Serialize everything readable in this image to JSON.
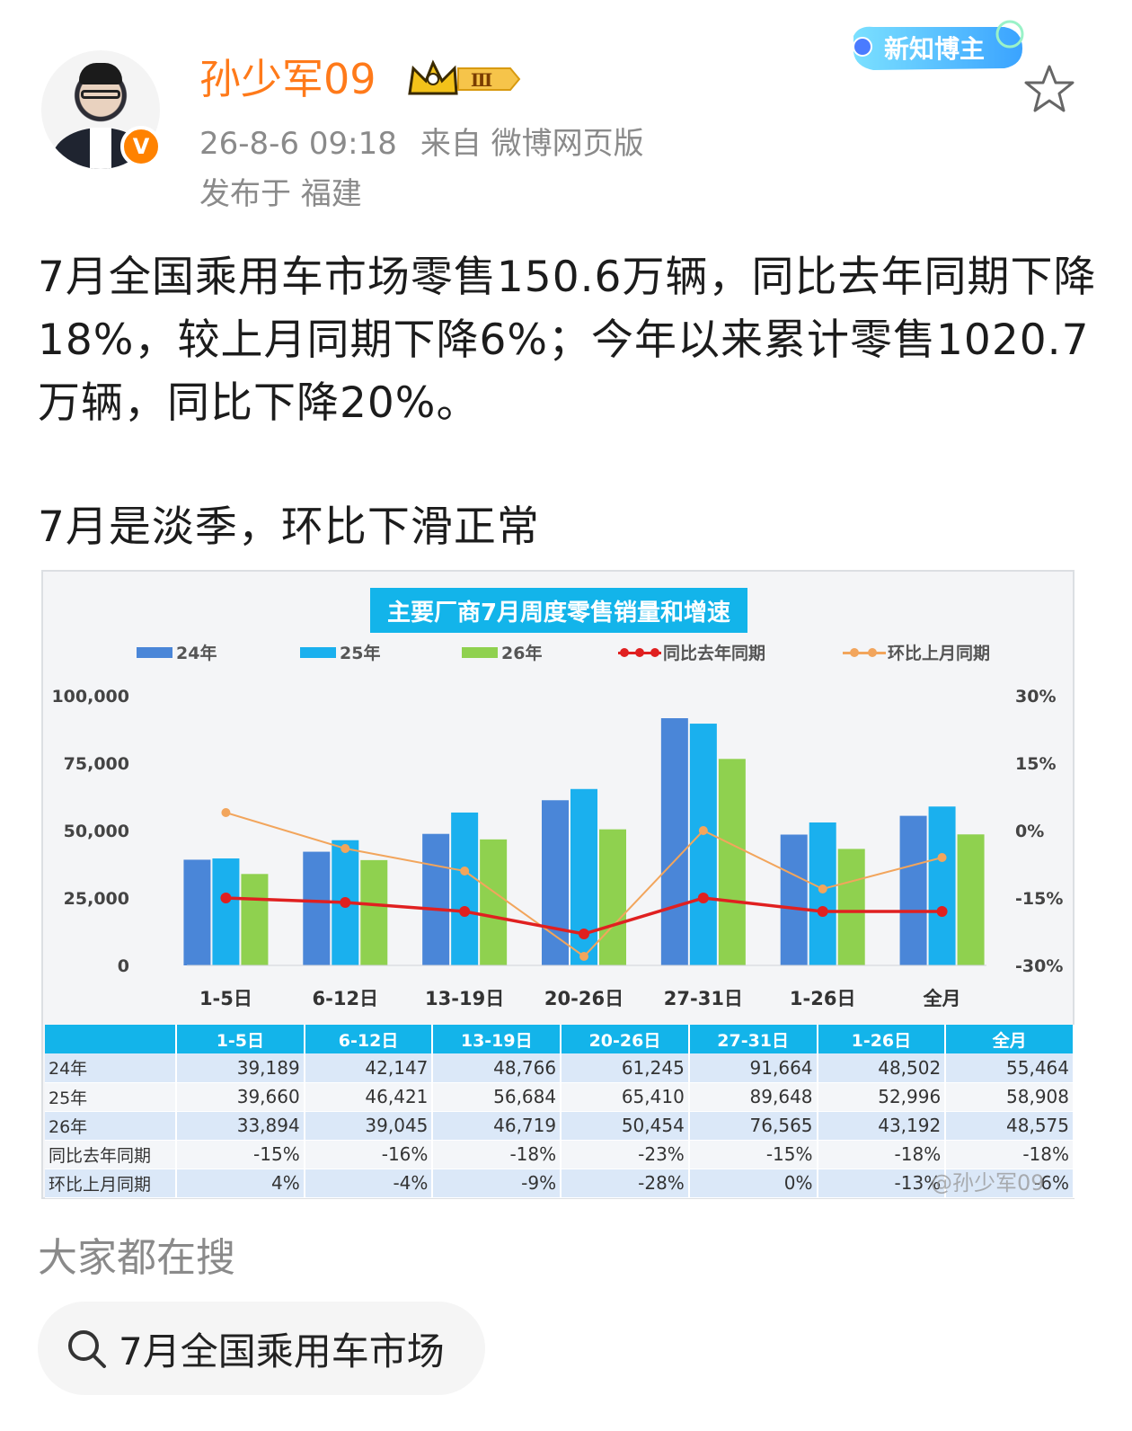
{
  "post": {
    "username": "孙少军09",
    "level_badge": "Ⅲ",
    "time": "26-8-6 09:18",
    "source": "来自 微博网页版",
    "location": "发布于 福建",
    "badge_label": "新知博主",
    "paragraph1": "7月全国乘用车市场零售150.6万辆，同比去年同期下降18%，较上月同期下降6%；今年以来累计零售1020.7万辆，同比下降20%。",
    "paragraph2": "7月是淡季，环比下滑正常"
  },
  "chart_data": {
    "type": "bar",
    "title": "主要厂商7月周度零售销量和增速",
    "categories": [
      "1-5日",
      "6-12日",
      "13-19日",
      "20-26日",
      "27-31日",
      "1-26日",
      "全月"
    ],
    "y_left_ticks": [
      "100,000",
      "75,000",
      "50,000",
      "25,000",
      "0"
    ],
    "y_right_ticks": [
      "30%",
      "15%",
      "0%",
      "-15%",
      "-30%"
    ],
    "ylim": [
      0,
      100000
    ],
    "y2lim": [
      -30,
      30
    ],
    "legend_position": "top",
    "series": [
      {
        "name": "24年",
        "kind": "bar",
        "color": "#4a86d8",
        "values": [
          39189,
          42147,
          48766,
          61245,
          91664,
          48502,
          55464
        ]
      },
      {
        "name": "25年",
        "kind": "bar",
        "color": "#1ab0ee",
        "values": [
          39660,
          46421,
          56684,
          65410,
          89648,
          52996,
          58908
        ]
      },
      {
        "name": "26年",
        "kind": "bar",
        "color": "#8fd14f",
        "values": [
          33894,
          39045,
          46719,
          50454,
          76565,
          43192,
          48575
        ]
      },
      {
        "name": "同比去年同期",
        "kind": "line",
        "axis": "right",
        "color": "#e02020",
        "values": [
          -15,
          -16,
          -18,
          -23,
          -15,
          -18,
          -18
        ]
      },
      {
        "name": "环比上月同期",
        "kind": "line",
        "axis": "right",
        "color": "#f2a55c",
        "values": [
          4,
          -4,
          -9,
          -28,
          0,
          -13,
          -6
        ]
      }
    ],
    "table": {
      "header": [
        "",
        "1-5日",
        "6-12日",
        "13-19日",
        "20-26日",
        "27-31日",
        "1-26日",
        "全月"
      ],
      "rows": [
        [
          "24年",
          "39,189",
          "42,147",
          "48,766",
          "61,245",
          "91,664",
          "48,502",
          "55,464"
        ],
        [
          "25年",
          "39,660",
          "46,421",
          "56,684",
          "65,410",
          "89,648",
          "52,996",
          "58,908"
        ],
        [
          "26年",
          "33,894",
          "39,045",
          "46,719",
          "50,454",
          "76,565",
          "43,192",
          "48,575"
        ],
        [
          "同比去年同期",
          "-15%",
          "-16%",
          "-18%",
          "-23%",
          "-15%",
          "-18%",
          "-18%"
        ],
        [
          "环比上月同期",
          "4%",
          "-4%",
          "-9%",
          "-28%",
          "0%",
          "-13%",
          "-6%"
        ]
      ]
    },
    "watermark": "@孙少军09"
  },
  "search": {
    "heading": "大家都在搜",
    "chip_text": "7月全国乘用车市场"
  },
  "colors": {
    "username": "#ff7a1a",
    "meta": "#8a8a8a",
    "verify": "#ff8200",
    "accent_blue": "#13b4ea"
  },
  "icons": [
    "verified-v-icon",
    "crown-level-icon",
    "star-icon",
    "search-icon"
  ]
}
